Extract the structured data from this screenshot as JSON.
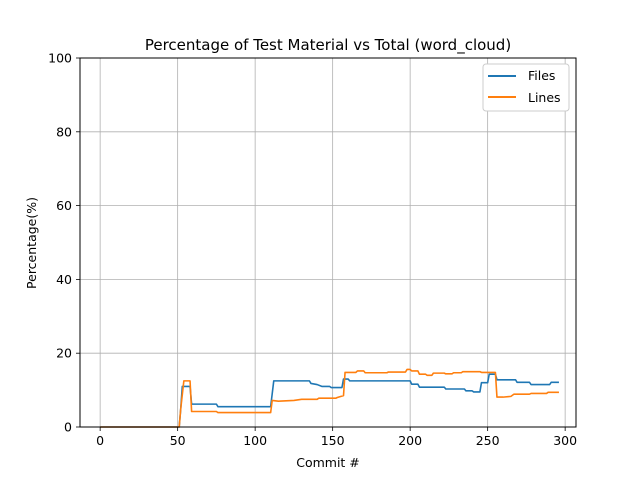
{
  "chart_data": {
    "type": "line",
    "title": "Percentage of Test Material vs Total (word_cloud)",
    "xlabel": "Commit #",
    "ylabel": "Percentage(%)",
    "xlim": [
      -13,
      307
    ],
    "ylim": [
      0,
      100
    ],
    "xticks": [
      0,
      50,
      100,
      150,
      200,
      250,
      300
    ],
    "yticks": [
      0,
      20,
      40,
      60,
      80,
      100
    ],
    "grid": true,
    "legend": "top-right",
    "series": [
      {
        "name": "Files",
        "color": "#1f77b4",
        "points": [
          [
            0,
            0
          ],
          [
            51,
            0
          ],
          [
            52,
            5
          ],
          [
            53,
            11
          ],
          [
            58,
            11
          ],
          [
            59,
            6.2
          ],
          [
            75,
            6.2
          ],
          [
            76,
            5.5
          ],
          [
            110,
            5.5
          ],
          [
            111,
            9
          ],
          [
            112,
            12.5
          ],
          [
            135,
            12.5
          ],
          [
            136,
            11.8
          ],
          [
            140,
            11.5
          ],
          [
            143,
            11
          ],
          [
            148,
            11
          ],
          [
            149,
            10.7
          ],
          [
            156,
            10.7
          ],
          [
            157,
            13
          ],
          [
            160,
            13
          ],
          [
            161,
            12.5
          ],
          [
            200,
            12.5
          ],
          [
            201,
            11.6
          ],
          [
            205,
            11.6
          ],
          [
            206,
            10.8
          ],
          [
            222,
            10.8
          ],
          [
            223,
            10.3
          ],
          [
            235,
            10.3
          ],
          [
            236,
            9.8
          ],
          [
            240,
            9.8
          ],
          [
            241,
            9.5
          ],
          [
            245,
            9.5
          ],
          [
            246,
            12
          ],
          [
            250,
            12
          ],
          [
            251,
            14.3
          ],
          [
            255,
            14.3
          ],
          [
            256,
            12.8
          ],
          [
            268,
            12.8
          ],
          [
            269,
            12.1
          ],
          [
            277,
            12.1
          ],
          [
            278,
            11.5
          ],
          [
            290,
            11.5
          ],
          [
            291,
            12.1
          ],
          [
            296,
            12.1
          ]
        ]
      },
      {
        "name": "Lines",
        "color": "#ff7f0e",
        "points": [
          [
            0,
            0
          ],
          [
            51,
            0
          ],
          [
            52,
            5
          ],
          [
            54,
            12.5
          ],
          [
            58,
            12.5
          ],
          [
            59,
            4.2
          ],
          [
            75,
            4.2
          ],
          [
            76,
            3.9
          ],
          [
            110,
            3.9
          ],
          [
            111,
            7.2
          ],
          [
            115,
            7.0
          ],
          [
            125,
            7.2
          ],
          [
            130,
            7.5
          ],
          [
            140,
            7.5
          ],
          [
            141,
            7.8
          ],
          [
            152,
            7.8
          ],
          [
            153,
            8.0
          ],
          [
            157,
            8.5
          ],
          [
            158,
            14.8
          ],
          [
            165,
            14.8
          ],
          [
            166,
            15.2
          ],
          [
            170,
            15.2
          ],
          [
            171,
            14.7
          ],
          [
            185,
            14.7
          ],
          [
            186,
            14.9
          ],
          [
            197,
            14.9
          ],
          [
            198,
            15.6
          ],
          [
            200,
            15.6
          ],
          [
            201,
            15.2
          ],
          [
            205,
            15.2
          ],
          [
            206,
            14.3
          ],
          [
            210,
            14.3
          ],
          [
            211,
            14
          ],
          [
            214,
            14
          ],
          [
            215,
            14.6
          ],
          [
            222,
            14.6
          ],
          [
            223,
            14.4
          ],
          [
            227,
            14.4
          ],
          [
            228,
            14.7
          ],
          [
            233,
            14.7
          ],
          [
            234,
            15
          ],
          [
            245,
            15
          ],
          [
            246,
            14.8
          ],
          [
            255,
            14.8
          ],
          [
            256,
            8.1
          ],
          [
            260,
            8.1
          ],
          [
            265,
            8.3
          ],
          [
            267,
            8.9
          ],
          [
            277,
            8.9
          ],
          [
            278,
            9.1
          ],
          [
            288,
            9.1
          ],
          [
            289,
            9.4
          ],
          [
            296,
            9.4
          ]
        ]
      }
    ]
  }
}
